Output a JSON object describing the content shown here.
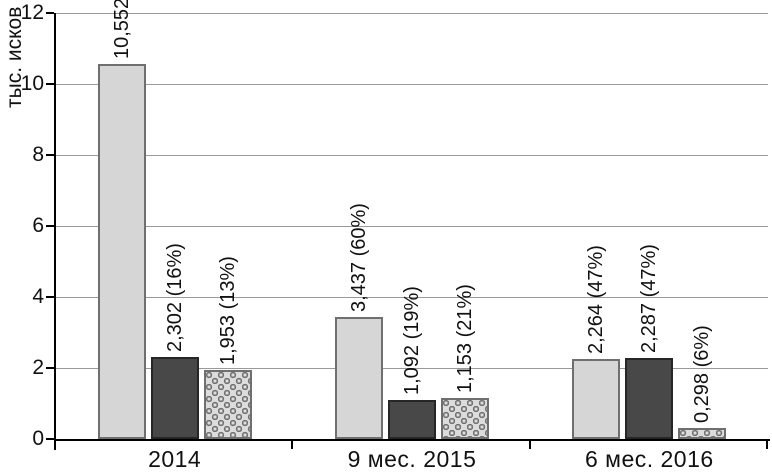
{
  "chart_data": {
    "type": "bar",
    "title": "",
    "xlabel": "",
    "ylabel": "тыс. исков",
    "ylim": [
      0,
      12
    ],
    "yticks": [
      0,
      2,
      4,
      6,
      8,
      10,
      12
    ],
    "grid": true,
    "legend_position": "none",
    "categories": [
      "2014",
      "9 мес. 2015",
      "6 мес. 2016"
    ],
    "series": [
      {
        "name": "light",
        "values": [
          10.552,
          3.437,
          2.264
        ],
        "bar_labels": [
          "10,552",
          "3,437 (60%)",
          "2,264 (47%)"
        ]
      },
      {
        "name": "dark",
        "values": [
          2.302,
          1.092,
          2.287
        ],
        "bar_labels": [
          "2,302 (16%)",
          "1,092 (19%)",
          "2,287 (47%)"
        ]
      },
      {
        "name": "dotted",
        "values": [
          1.953,
          1.153,
          0.298
        ],
        "bar_labels": [
          "1,953 (13%)",
          "1,153 (21%)",
          "0,298 (6%)"
        ]
      }
    ],
    "colors": {
      "light_fill": "#d6d6d6",
      "light_border": "#6f6f6f",
      "dark_fill": "#484848",
      "dark_border": "#262626",
      "pattern_bg": "#dcdcdc",
      "pattern_dot": "#9a9a9a",
      "pattern_border": "#6f6f6f",
      "grid": "#999999",
      "axis": "#000000",
      "text": "#111111"
    }
  }
}
